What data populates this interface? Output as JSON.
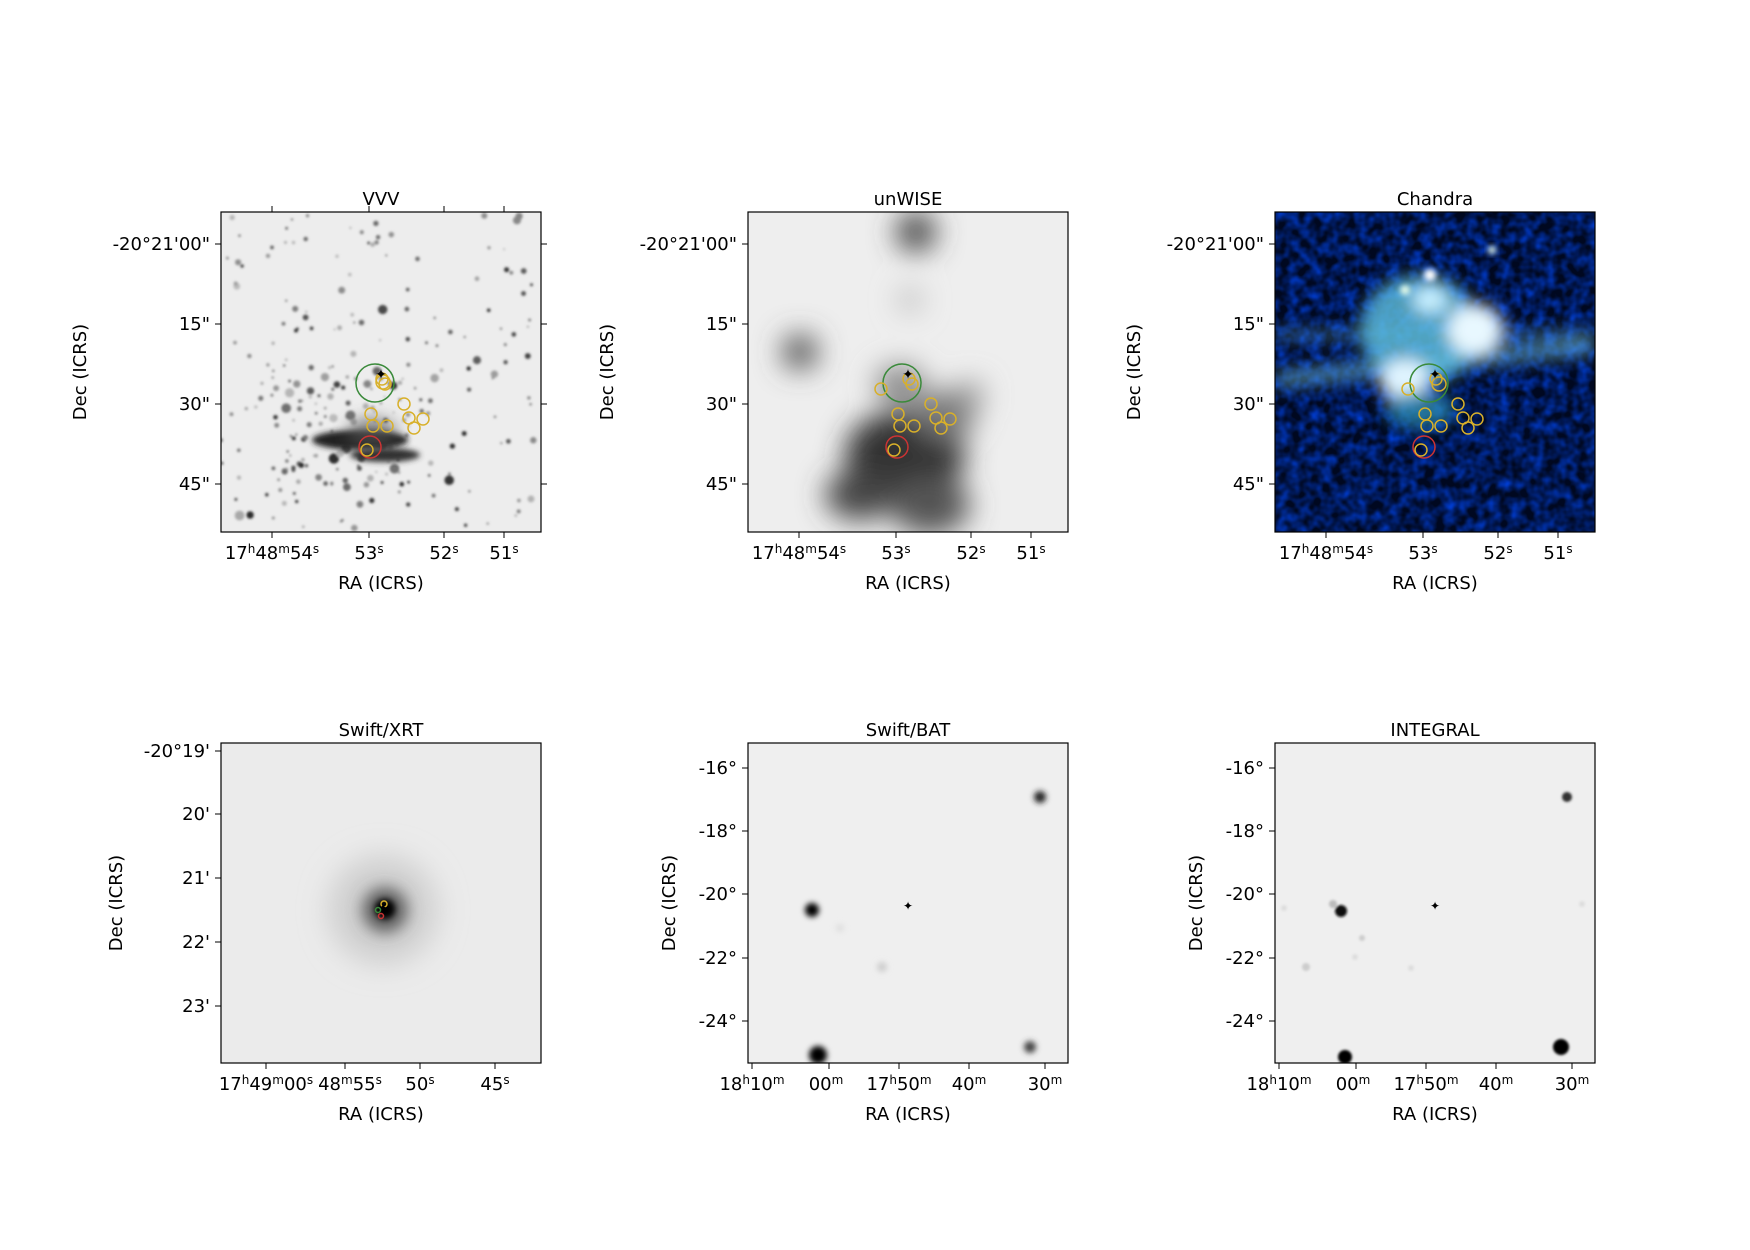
{
  "chart_data": [
    {
      "type": "image",
      "title": "VVV",
      "xlabel": "RA (ICRS)",
      "ylabel": "Dec (ICRS)",
      "colormap": "gray_r",
      "x_ticks": [
        "17h48m54s",
        "53s",
        "52s",
        "51s"
      ],
      "y_ticks": [
        "-20°21'00\"",
        "15\"",
        "30\"",
        "45\""
      ],
      "markers": {
        "green_circle": true,
        "red_circle": true,
        "yellow_circles": 11,
        "orange_star": true
      }
    },
    {
      "type": "image",
      "title": "unWISE",
      "xlabel": "RA (ICRS)",
      "ylabel": "Dec (ICRS)",
      "colormap": "gray_r",
      "x_ticks": [
        "17h48m54s",
        "53s",
        "52s",
        "51s"
      ],
      "y_ticks": [
        "-20°21'00\"",
        "15\"",
        "30\"",
        "45\""
      ],
      "markers": {
        "green_circle": true,
        "red_circle": true,
        "yellow_circles": 11,
        "orange_star": true
      }
    },
    {
      "type": "image",
      "title": "Chandra",
      "xlabel": "RA (ICRS)",
      "ylabel": "Dec (ICRS)",
      "colormap": "rgb",
      "x_ticks": [
        "17h48m54s",
        "53s",
        "52s",
        "51s"
      ],
      "y_ticks": [
        "-20°21'00\"",
        "15\"",
        "30\"",
        "45\""
      ],
      "markers": {
        "green_circle": true,
        "red_circle": true,
        "yellow_circles": 11,
        "orange_star": true
      }
    },
    {
      "type": "image",
      "title": "Swift/XRT",
      "xlabel": "RA (ICRS)",
      "ylabel": "Dec (ICRS)",
      "colormap": "gray_r",
      "x_ticks": [
        "17h49m00s",
        "48m55s",
        "50s",
        "45s"
      ],
      "y_ticks": [
        "-20°19'",
        "20'",
        "21'",
        "22'",
        "23'"
      ],
      "markers": {
        "orange_star": true
      }
    },
    {
      "type": "image",
      "title": "Swift/BAT",
      "xlabel": "RA (ICRS)",
      "ylabel": "Dec (ICRS)",
      "colormap": "gray_r",
      "x_ticks": [
        "18h10m",
        "00m",
        "17h50m",
        "40m",
        "30m"
      ],
      "y_ticks": [
        "-16°",
        "-18°",
        "-20°",
        "-22°",
        "-24°"
      ],
      "markers": {
        "orange_star": true
      }
    },
    {
      "type": "image",
      "title": "INTEGRAL",
      "xlabel": "RA (ICRS)",
      "ylabel": "Dec (ICRS)",
      "colormap": "gray_r",
      "x_ticks": [
        "18h10m",
        "00m",
        "17h50m",
        "40m",
        "30m"
      ],
      "y_ticks": [
        "-16°",
        "-18°",
        "-20°",
        "-22°",
        "-24°"
      ],
      "markers": {
        "orange_star": true
      }
    }
  ]
}
